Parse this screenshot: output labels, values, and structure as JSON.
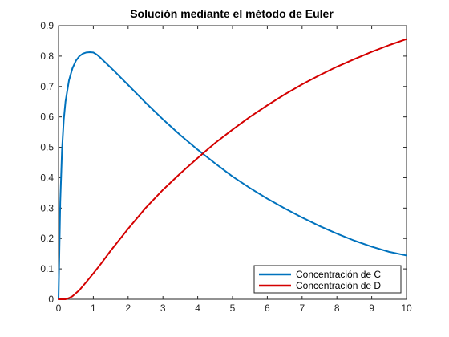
{
  "chart_data": {
    "type": "line",
    "title": "Solución mediante el método de Euler",
    "xlabel": "",
    "ylabel": "",
    "xlim": [
      0,
      10
    ],
    "ylim": [
      0,
      0.9
    ],
    "xticks": [
      "0",
      "1",
      "2",
      "3",
      "4",
      "5",
      "6",
      "7",
      "8",
      "9",
      "10"
    ],
    "yticks": [
      "0",
      "0.1",
      "0.2",
      "0.3",
      "0.4",
      "0.5",
      "0.6",
      "0.7",
      "0.8",
      "0.9"
    ],
    "grid": false,
    "legend_position": "bottom-right",
    "series": [
      {
        "name": "Concentración de C",
        "color": "#0072BD",
        "x": [
          0,
          0.05,
          0.1,
          0.15,
          0.2,
          0.3,
          0.4,
          0.5,
          0.6,
          0.7,
          0.8,
          0.9,
          1.0,
          1.1,
          1.2,
          1.4,
          1.6,
          1.8,
          2.0,
          2.5,
          3.0,
          3.5,
          4.0,
          4.5,
          5.0,
          5.5,
          6.0,
          6.5,
          7.0,
          7.5,
          8.0,
          8.5,
          9.0,
          9.5,
          10.0
        ],
        "y": [
          0,
          0.32,
          0.49,
          0.59,
          0.65,
          0.72,
          0.76,
          0.785,
          0.8,
          0.808,
          0.812,
          0.813,
          0.812,
          0.805,
          0.795,
          0.773,
          0.751,
          0.728,
          0.705,
          0.647,
          0.592,
          0.54,
          0.492,
          0.447,
          0.404,
          0.366,
          0.331,
          0.299,
          0.269,
          0.241,
          0.216,
          0.193,
          0.173,
          0.156,
          0.144
        ]
      },
      {
        "name": "Concentración de D",
        "color": "#D40000",
        "x": [
          0,
          0.2,
          0.3,
          0.4,
          0.5,
          0.6,
          0.8,
          1.0,
          1.2,
          1.5,
          2.0,
          2.5,
          3.0,
          3.5,
          4.0,
          4.5,
          5.0,
          5.5,
          6.0,
          6.5,
          7.0,
          7.5,
          8.0,
          8.5,
          9.0,
          9.5,
          10.0
        ],
        "y": [
          0,
          0.0,
          0.004,
          0.01,
          0.02,
          0.03,
          0.057,
          0.085,
          0.114,
          0.16,
          0.232,
          0.3,
          0.36,
          0.414,
          0.465,
          0.514,
          0.558,
          0.6,
          0.638,
          0.674,
          0.707,
          0.737,
          0.765,
          0.79,
          0.814,
          0.836,
          0.856
        ]
      }
    ]
  }
}
